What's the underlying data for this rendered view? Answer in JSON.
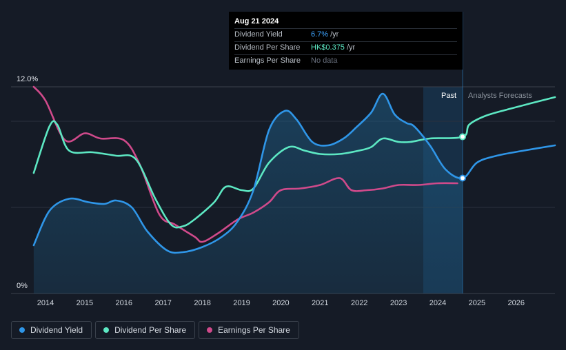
{
  "chart_data": {
    "type": "line",
    "x_ticks": [
      "2014",
      "2015",
      "2016",
      "2017",
      "2018",
      "2019",
      "2020",
      "2021",
      "2022",
      "2023",
      "2024",
      "2025",
      "2026"
    ],
    "y_labels": [
      "12.0%",
      "0%"
    ],
    "ylim": [
      0,
      12
    ],
    "region_labels": {
      "past": "Past",
      "forecast": "Analysts Forecasts"
    },
    "series": [
      {
        "name": "Dividend Yield",
        "color": "#2f96e8",
        "unit": "%",
        "points": [
          [
            2013.7,
            2.8
          ],
          [
            2014.1,
            4.8
          ],
          [
            2014.6,
            5.5
          ],
          [
            2015.1,
            5.3
          ],
          [
            2015.5,
            5.2
          ],
          [
            2015.8,
            5.4
          ],
          [
            2016.2,
            5.0
          ],
          [
            2016.6,
            3.6
          ],
          [
            2017.1,
            2.5
          ],
          [
            2017.5,
            2.4
          ],
          [
            2018.0,
            2.7
          ],
          [
            2018.5,
            3.3
          ],
          [
            2018.9,
            4.2
          ],
          [
            2019.3,
            6.0
          ],
          [
            2019.7,
            9.5
          ],
          [
            2020.1,
            10.6
          ],
          [
            2020.4,
            10.1
          ],
          [
            2020.8,
            8.8
          ],
          [
            2021.2,
            8.6
          ],
          [
            2021.6,
            9.0
          ],
          [
            2021.9,
            9.6
          ],
          [
            2022.3,
            10.5
          ],
          [
            2022.6,
            11.6
          ],
          [
            2022.9,
            10.4
          ],
          [
            2023.2,
            9.9
          ],
          [
            2023.4,
            9.7
          ],
          [
            2023.8,
            8.6
          ],
          [
            2024.2,
            7.2
          ],
          [
            2024.64,
            6.7
          ],
          [
            2025.0,
            7.6
          ],
          [
            2025.5,
            8.0
          ],
          [
            2026.2,
            8.3
          ],
          [
            2027.0,
            8.6
          ]
        ]
      },
      {
        "name": "Dividend Per Share",
        "color": "#5de8c3",
        "unit": "HK$",
        "points": [
          [
            2013.7,
            7.0
          ],
          [
            2014.1,
            9.7
          ],
          [
            2014.3,
            9.8
          ],
          [
            2014.6,
            8.3
          ],
          [
            2015.2,
            8.2
          ],
          [
            2015.8,
            8.0
          ],
          [
            2016.3,
            7.8
          ],
          [
            2016.8,
            5.5
          ],
          [
            2017.2,
            4.0
          ],
          [
            2017.5,
            3.9
          ],
          [
            2017.8,
            4.3
          ],
          [
            2018.3,
            5.3
          ],
          [
            2018.6,
            6.2
          ],
          [
            2019.0,
            6.0
          ],
          [
            2019.3,
            6.1
          ],
          [
            2019.7,
            7.6
          ],
          [
            2020.2,
            8.5
          ],
          [
            2020.6,
            8.3
          ],
          [
            2021.0,
            8.1
          ],
          [
            2021.5,
            8.1
          ],
          [
            2022.0,
            8.3
          ],
          [
            2022.3,
            8.5
          ],
          [
            2022.6,
            9.0
          ],
          [
            2023.0,
            8.8
          ],
          [
            2023.3,
            8.8
          ],
          [
            2023.8,
            9.0
          ],
          [
            2024.64,
            9.1
          ],
          [
            2024.8,
            9.8
          ],
          [
            2025.2,
            10.3
          ],
          [
            2025.8,
            10.7
          ],
          [
            2027.0,
            11.4
          ]
        ]
      },
      {
        "name": "Earnings Per Share",
        "color": "#d04a8b",
        "unit": "HK$",
        "points": [
          [
            2013.7,
            12.0
          ],
          [
            2014.0,
            11.2
          ],
          [
            2014.5,
            8.9
          ],
          [
            2015.0,
            9.3
          ],
          [
            2015.4,
            9.0
          ],
          [
            2016.0,
            8.9
          ],
          [
            2016.4,
            7.5
          ],
          [
            2016.9,
            4.6
          ],
          [
            2017.3,
            4.0
          ],
          [
            2017.8,
            3.3
          ],
          [
            2018.0,
            3.0
          ],
          [
            2018.4,
            3.5
          ],
          [
            2018.9,
            4.3
          ],
          [
            2019.3,
            4.7
          ],
          [
            2019.7,
            5.3
          ],
          [
            2020.0,
            6.0
          ],
          [
            2020.5,
            6.1
          ],
          [
            2021.0,
            6.3
          ],
          [
            2021.5,
            6.7
          ],
          [
            2021.8,
            6.0
          ],
          [
            2022.2,
            6.0
          ],
          [
            2022.6,
            6.1
          ],
          [
            2023.0,
            6.3
          ],
          [
            2023.5,
            6.3
          ],
          [
            2024.0,
            6.4
          ],
          [
            2024.5,
            6.4
          ]
        ]
      }
    ],
    "highlight_date": "2024-08-21"
  },
  "tooltip": {
    "date": "Aug 21 2024",
    "rows": [
      {
        "label": "Dividend Yield",
        "value": "6.7%",
        "unit": "/yr",
        "color": "#3ea4ff"
      },
      {
        "label": "Dividend Per Share",
        "value": "HK$0.375",
        "unit": "/yr",
        "color": "#5de8c3"
      },
      {
        "label": "Earnings Per Share",
        "value": "No data",
        "unit": "",
        "color": "#6b7280"
      }
    ]
  },
  "legend": [
    {
      "label": "Dividend Yield",
      "color": "#2f96e8"
    },
    {
      "label": "Dividend Per Share",
      "color": "#5de8c3"
    },
    {
      "label": "Earnings Per Share",
      "color": "#d04a8b"
    }
  ]
}
